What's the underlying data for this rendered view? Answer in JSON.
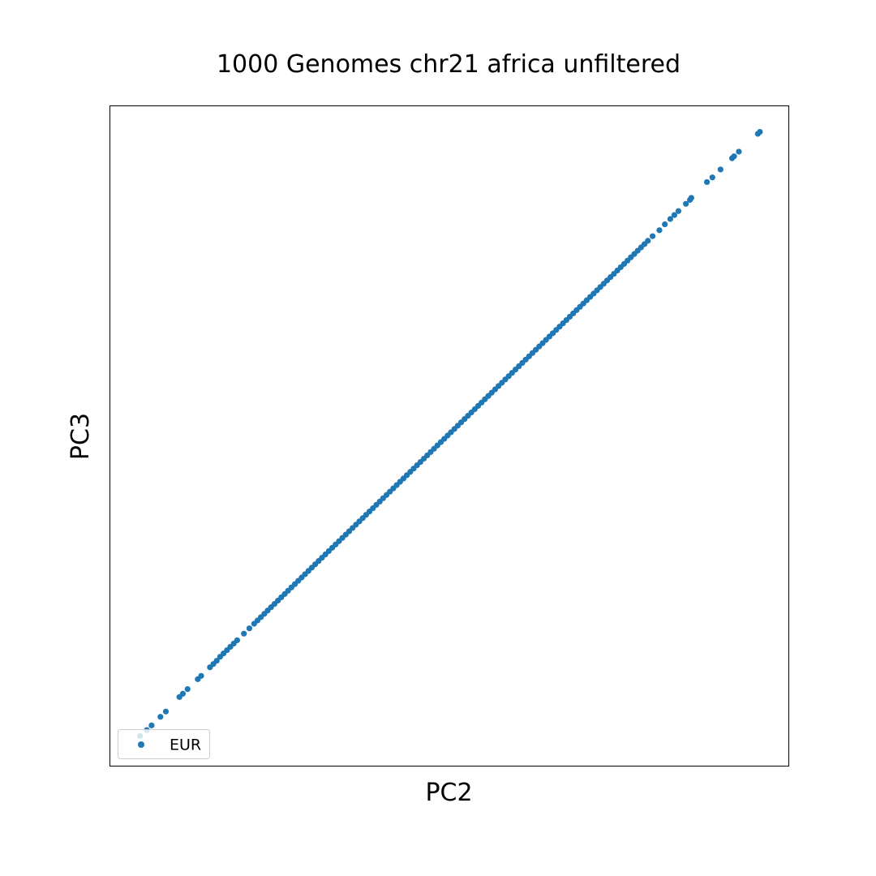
{
  "chart_data": {
    "type": "scatter",
    "title": "1000 Genomes chr21 africa unfiltered",
    "xlabel": "PC2",
    "ylabel": "PC3",
    "xlim": [
      0,
      1
    ],
    "ylim": [
      0,
      1
    ],
    "xticks": "none",
    "yticks": "none",
    "grid": false,
    "legend": {
      "placement": "lower-left",
      "entries": [
        {
          "label": "EUR",
          "color": "#1f77b4"
        }
      ]
    },
    "series": [
      {
        "name": "EUR",
        "color": "#1f77b4",
        "points": [
          [
            0.045,
            0.045
          ],
          [
            0.055,
            0.054
          ],
          [
            0.062,
            0.061
          ],
          [
            0.075,
            0.074
          ],
          [
            0.083,
            0.082
          ],
          [
            0.103,
            0.104
          ],
          [
            0.108,
            0.109
          ],
          [
            0.115,
            0.116
          ],
          [
            0.13,
            0.131
          ],
          [
            0.135,
            0.136
          ],
          [
            0.148,
            0.149
          ],
          [
            0.153,
            0.154
          ],
          [
            0.158,
            0.159
          ],
          [
            0.163,
            0.165
          ],
          [
            0.168,
            0.17
          ],
          [
            0.173,
            0.175
          ],
          [
            0.178,
            0.18
          ],
          [
            0.183,
            0.185
          ],
          [
            0.188,
            0.19
          ],
          [
            0.198,
            0.2
          ],
          [
            0.206,
            0.208
          ],
          [
            0.213,
            0.215
          ],
          [
            0.218,
            0.22
          ],
          [
            0.223,
            0.225
          ],
          [
            0.228,
            0.23
          ],
          [
            0.233,
            0.235
          ],
          [
            0.238,
            0.24
          ],
          [
            0.243,
            0.245
          ],
          [
            0.248,
            0.25
          ],
          [
            0.253,
            0.255
          ],
          [
            0.258,
            0.26
          ],
          [
            0.263,
            0.265
          ],
          [
            0.268,
            0.27
          ],
          [
            0.273,
            0.275
          ],
          [
            0.278,
            0.28
          ],
          [
            0.283,
            0.285
          ],
          [
            0.288,
            0.29
          ],
          [
            0.293,
            0.295
          ],
          [
            0.298,
            0.3
          ],
          [
            0.303,
            0.305
          ],
          [
            0.308,
            0.31
          ],
          [
            0.313,
            0.315
          ],
          [
            0.318,
            0.32
          ],
          [
            0.323,
            0.325
          ],
          [
            0.328,
            0.33
          ],
          [
            0.333,
            0.335
          ],
          [
            0.338,
            0.34
          ],
          [
            0.343,
            0.345
          ],
          [
            0.348,
            0.35
          ],
          [
            0.353,
            0.355
          ],
          [
            0.358,
            0.36
          ],
          [
            0.363,
            0.365
          ],
          [
            0.368,
            0.37
          ],
          [
            0.373,
            0.375
          ],
          [
            0.378,
            0.38
          ],
          [
            0.383,
            0.385
          ],
          [
            0.388,
            0.39
          ],
          [
            0.393,
            0.395
          ],
          [
            0.398,
            0.4
          ],
          [
            0.403,
            0.405
          ],
          [
            0.408,
            0.41
          ],
          [
            0.413,
            0.415
          ],
          [
            0.418,
            0.42
          ],
          [
            0.423,
            0.425
          ],
          [
            0.428,
            0.43
          ],
          [
            0.433,
            0.435
          ],
          [
            0.438,
            0.44
          ],
          [
            0.443,
            0.445
          ],
          [
            0.448,
            0.45
          ],
          [
            0.453,
            0.455
          ],
          [
            0.458,
            0.46
          ],
          [
            0.463,
            0.465
          ],
          [
            0.468,
            0.47
          ],
          [
            0.473,
            0.475
          ],
          [
            0.478,
            0.48
          ],
          [
            0.483,
            0.485
          ],
          [
            0.488,
            0.49
          ],
          [
            0.493,
            0.495
          ],
          [
            0.498,
            0.5
          ],
          [
            0.503,
            0.505
          ],
          [
            0.508,
            0.51
          ],
          [
            0.513,
            0.515
          ],
          [
            0.518,
            0.52
          ],
          [
            0.523,
            0.525
          ],
          [
            0.528,
            0.53
          ],
          [
            0.533,
            0.535
          ],
          [
            0.538,
            0.54
          ],
          [
            0.543,
            0.545
          ],
          [
            0.548,
            0.55
          ],
          [
            0.553,
            0.555
          ],
          [
            0.558,
            0.56
          ],
          [
            0.563,
            0.565
          ],
          [
            0.568,
            0.57
          ],
          [
            0.573,
            0.575
          ],
          [
            0.578,
            0.58
          ],
          [
            0.583,
            0.585
          ],
          [
            0.588,
            0.59
          ],
          [
            0.593,
            0.595
          ],
          [
            0.598,
            0.6
          ],
          [
            0.603,
            0.605
          ],
          [
            0.608,
            0.61
          ],
          [
            0.613,
            0.615
          ],
          [
            0.618,
            0.62
          ],
          [
            0.623,
            0.625
          ],
          [
            0.628,
            0.63
          ],
          [
            0.633,
            0.635
          ],
          [
            0.638,
            0.64
          ],
          [
            0.643,
            0.645
          ],
          [
            0.648,
            0.65
          ],
          [
            0.653,
            0.655
          ],
          [
            0.658,
            0.66
          ],
          [
            0.663,
            0.665
          ],
          [
            0.668,
            0.67
          ],
          [
            0.673,
            0.675
          ],
          [
            0.678,
            0.68
          ],
          [
            0.683,
            0.685
          ],
          [
            0.688,
            0.69
          ],
          [
            0.693,
            0.695
          ],
          [
            0.698,
            0.7
          ],
          [
            0.703,
            0.705
          ],
          [
            0.708,
            0.71
          ],
          [
            0.713,
            0.715
          ],
          [
            0.718,
            0.72
          ],
          [
            0.723,
            0.725
          ],
          [
            0.728,
            0.73
          ],
          [
            0.733,
            0.735
          ],
          [
            0.738,
            0.74
          ],
          [
            0.743,
            0.745
          ],
          [
            0.748,
            0.75
          ],
          [
            0.753,
            0.755
          ],
          [
            0.758,
            0.76
          ],
          [
            0.763,
            0.765
          ],
          [
            0.768,
            0.77
          ],
          [
            0.773,
            0.775
          ],
          [
            0.778,
            0.78
          ],
          [
            0.783,
            0.785
          ],
          [
            0.788,
            0.79
          ],
          [
            0.793,
            0.795
          ],
          [
            0.8,
            0.802
          ],
          [
            0.81,
            0.811
          ],
          [
            0.818,
            0.82
          ],
          [
            0.826,
            0.828
          ],
          [
            0.832,
            0.834
          ],
          [
            0.838,
            0.84
          ],
          [
            0.849,
            0.851
          ],
          [
            0.855,
            0.857
          ],
          [
            0.857,
            0.86
          ],
          [
            0.88,
            0.884
          ],
          [
            0.888,
            0.891
          ],
          [
            0.9,
            0.903
          ],
          [
            0.917,
            0.92
          ],
          [
            0.92,
            0.923
          ],
          [
            0.927,
            0.93
          ],
          [
            0.955,
            0.957
          ],
          [
            0.958,
            0.96
          ]
        ]
      }
    ]
  }
}
